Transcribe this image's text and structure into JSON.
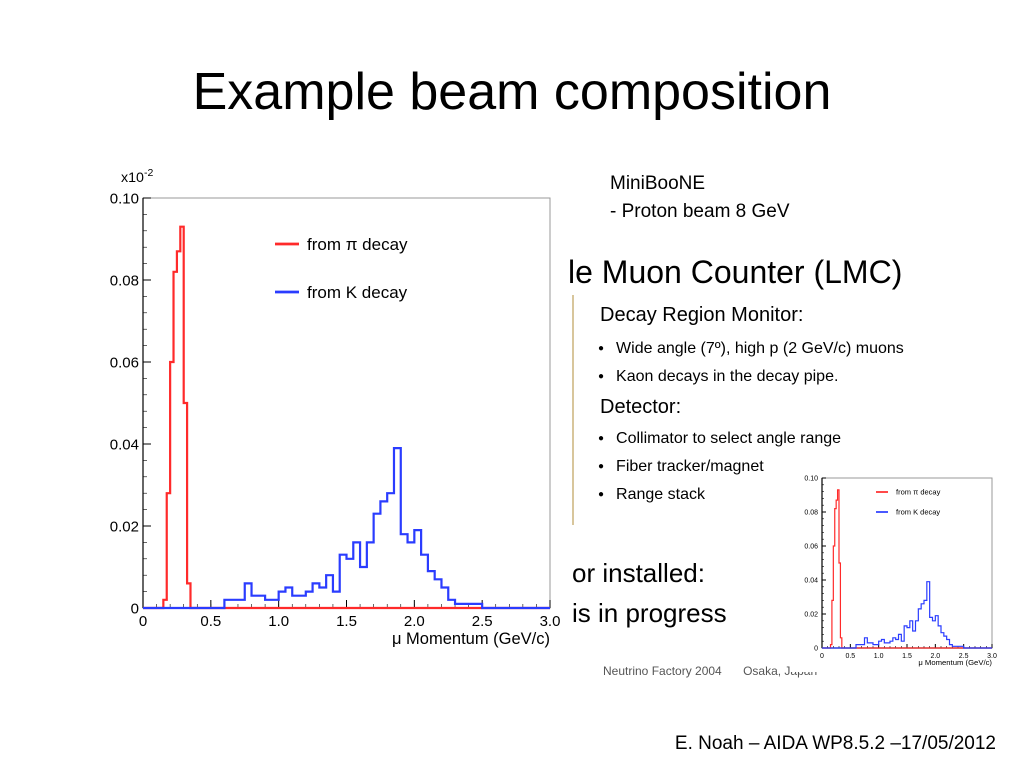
{
  "slide": {
    "title": "Example beam composition",
    "caption_line1": "MiniBooNE",
    "caption_line2": "- Proton beam 8 GeV",
    "footer": "E. Noah – AIDA WP8.5.2 –17/05/2012"
  },
  "lmc_panel": {
    "heading": "le Muon Counter (LMC)",
    "section1": "Decay Region Monitor:",
    "bullets1": [
      "Wide angle (7º), high p (2 GeV/c) muons",
      "Kaon decays in the decay pipe."
    ],
    "section2": "Detector:",
    "bullets2": [
      "Collimator to select angle range",
      "Fiber tracker/magnet",
      "Range stack"
    ],
    "line1": "or installed:",
    "line2": "is in progress",
    "footer_left": "Neutrino Factory 2004",
    "footer_right": "Osaka, Japan"
  },
  "chart_data": [
    {
      "type": "line",
      "xlabel": "μ Momentum (GeV/c)",
      "ylabel": "",
      "y_multiplier": "x10-2",
      "xlim": [
        0,
        3.0
      ],
      "ylim": [
        0,
        0.1
      ],
      "xticks": [
        "0",
        "0.5",
        "1.0",
        "1.5",
        "2.0",
        "2.5",
        "3.0"
      ],
      "yticks": [
        "0",
        "0.02",
        "0.04",
        "0.06",
        "0.08",
        "0.10"
      ],
      "legend_position": "top-right",
      "series": [
        {
          "name": "from π decay",
          "color": "#ff2a2a",
          "x": [
            0.0,
            0.1,
            0.15,
            0.175,
            0.2,
            0.225,
            0.25,
            0.275,
            0.3,
            0.325,
            0.35,
            0.375,
            0.4,
            0.5,
            1.0,
            1.5,
            2.0,
            2.5,
            3.0
          ],
          "y": [
            0.0,
            0.0,
            0.002,
            0.028,
            0.06,
            0.082,
            0.087,
            0.093,
            0.05,
            0.006,
            0.0,
            0.0,
            0.0,
            0.0,
            0.0,
            0.0,
            0.0,
            0.0,
            0.0
          ]
        },
        {
          "name": "from K decay",
          "color": "#2a3cff",
          "x": [
            0.0,
            0.5,
            0.6,
            0.75,
            0.8,
            0.9,
            1.0,
            1.05,
            1.1,
            1.2,
            1.25,
            1.3,
            1.35,
            1.4,
            1.45,
            1.5,
            1.55,
            1.6,
            1.65,
            1.7,
            1.75,
            1.8,
            1.85,
            1.9,
            1.95,
            2.0,
            2.05,
            2.1,
            2.15,
            2.2,
            2.25,
            2.3,
            2.4,
            2.5,
            3.0
          ],
          "y": [
            0.0,
            0.0,
            0.002,
            0.006,
            0.003,
            0.002,
            0.004,
            0.005,
            0.003,
            0.004,
            0.006,
            0.005,
            0.008,
            0.004,
            0.013,
            0.012,
            0.016,
            0.01,
            0.016,
            0.023,
            0.026,
            0.028,
            0.039,
            0.018,
            0.016,
            0.019,
            0.013,
            0.009,
            0.007,
            0.005,
            0.002,
            0.001,
            0.001,
            0.0,
            0.0
          ]
        }
      ]
    },
    {
      "type": "line",
      "xlabel": "μ Momentum (GeV/c)",
      "ylabel": "",
      "y_multiplier": "x10-2",
      "xlim": [
        0,
        3.0
      ],
      "ylim": [
        0,
        0.1
      ],
      "xticks": [
        "0",
        "0.5",
        "1.0",
        "1.5",
        "2.0",
        "2.5",
        "3.0"
      ],
      "yticks": [
        "0",
        "0.02",
        "0.04",
        "0.06",
        "0.08",
        "0.10"
      ],
      "legend_position": "top-right",
      "series": [
        {
          "name": "from π decay",
          "color": "#ff2a2a",
          "x": [
            0.0,
            0.1,
            0.15,
            0.175,
            0.2,
            0.225,
            0.25,
            0.275,
            0.3,
            0.325,
            0.35,
            0.375,
            0.4,
            0.5,
            1.0,
            1.5,
            2.0,
            2.5,
            3.0
          ],
          "y": [
            0.0,
            0.0,
            0.002,
            0.028,
            0.06,
            0.082,
            0.087,
            0.093,
            0.05,
            0.006,
            0.0,
            0.0,
            0.0,
            0.0,
            0.0,
            0.0,
            0.0,
            0.0,
            0.0
          ]
        },
        {
          "name": "from K decay",
          "color": "#2a3cff",
          "x": [
            0.0,
            0.5,
            0.6,
            0.75,
            0.8,
            0.9,
            1.0,
            1.05,
            1.1,
            1.2,
            1.25,
            1.3,
            1.35,
            1.4,
            1.45,
            1.5,
            1.55,
            1.6,
            1.65,
            1.7,
            1.75,
            1.8,
            1.85,
            1.9,
            1.95,
            2.0,
            2.05,
            2.1,
            2.15,
            2.2,
            2.25,
            2.3,
            2.4,
            2.5,
            3.0
          ],
          "y": [
            0.0,
            0.0,
            0.002,
            0.006,
            0.003,
            0.002,
            0.004,
            0.005,
            0.003,
            0.004,
            0.006,
            0.005,
            0.008,
            0.004,
            0.013,
            0.012,
            0.016,
            0.01,
            0.016,
            0.023,
            0.026,
            0.028,
            0.039,
            0.018,
            0.016,
            0.019,
            0.013,
            0.009,
            0.007,
            0.005,
            0.002,
            0.001,
            0.001,
            0.0,
            0.0
          ]
        }
      ]
    }
  ]
}
